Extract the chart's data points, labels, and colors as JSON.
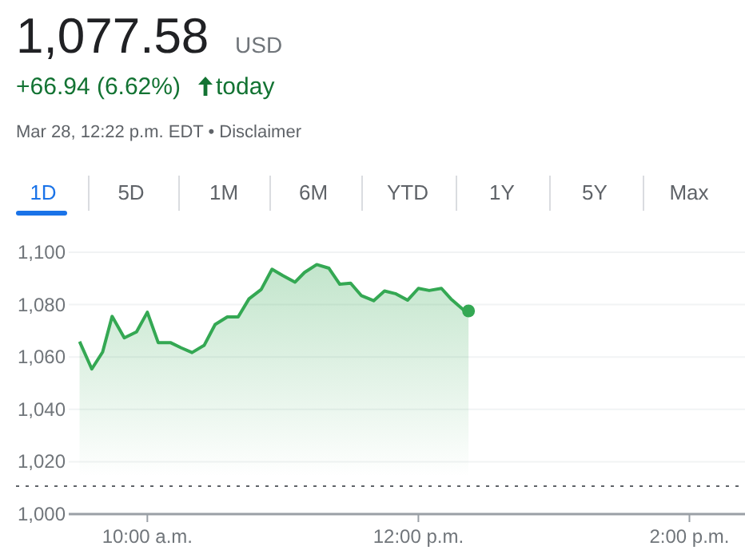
{
  "chart_data": {
    "type": "area",
    "title": "1,077.58",
    "annotations": [
      "USD",
      "+66.94 (6.62%)",
      "today",
      "Mar 28, 12:22 p.m. EDT • Disclaimer",
      "1D",
      "5D",
      "1M",
      "6M",
      "YTD",
      "1Y",
      "5Y",
      "Max"
    ],
    "x": [
      9.5,
      9.59,
      9.67,
      9.74,
      9.83,
      9.92,
      10.0,
      10.08,
      10.17,
      10.25,
      10.33,
      10.42,
      10.5,
      10.59,
      10.67,
      10.75,
      10.84,
      10.92,
      11.0,
      11.09,
      11.16,
      11.25,
      11.34,
      11.42,
      11.5,
      11.58,
      11.67,
      11.75,
      11.83,
      11.92,
      12.0,
      12.08,
      12.17,
      12.24,
      12.33,
      12.37
    ],
    "series": [
      {
        "color": "#34a853",
        "values": [
          1065.9,
          1055.4,
          1061.9,
          1075.5,
          1067.3,
          1069.6,
          1077.1,
          1065.5,
          1065.5,
          1063.5,
          1061.7,
          1064.5,
          1072.4,
          1075.3,
          1075.3,
          1082.2,
          1085.8,
          1093.5,
          1091.1,
          1088.6,
          1092.3,
          1095.3,
          1093.9,
          1087.8,
          1088.2,
          1083.4,
          1081.5,
          1085.2,
          1084.2,
          1081.7,
          1086.2,
          1085.4,
          1086.2,
          1082.2,
          1078.1,
          1077.6
        ]
      }
    ],
    "xlim": [
      9.42,
      14.41
    ],
    "xticks": [
      {
        "value": 10,
        "label": "10:00 a.m."
      },
      {
        "value": 12,
        "label": "12:00 p.m."
      },
      {
        "value": 14,
        "label": "2:00 p.m."
      }
    ],
    "ylim": [
      1000,
      1100
    ],
    "yticks": [
      {
        "value": 1000,
        "label": "1,000"
      },
      {
        "value": 1020,
        "label": "1,020"
      },
      {
        "value": 1040,
        "label": "1,040"
      },
      {
        "value": 1060,
        "label": "1,060"
      },
      {
        "value": 1080,
        "label": "1,080"
      },
      {
        "value": 1100,
        "label": "1,100"
      }
    ],
    "ref_lines": [
      {
        "axis": "y",
        "value": 1010.64,
        "color": "#5f6368",
        "line_style": "dotted"
      }
    ],
    "grid": "y",
    "marker": "none",
    "line_style": "solid"
  }
}
